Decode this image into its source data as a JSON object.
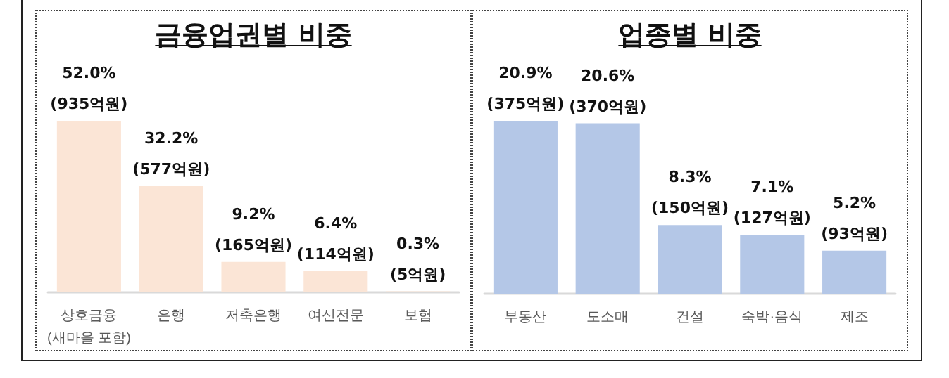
{
  "chart_data": [
    {
      "type": "bar",
      "title": "금융업권별 비중",
      "categories": [
        "상호금융\n(새마을 포함)",
        "은행",
        "저축은행",
        "여신전문",
        "보험"
      ],
      "series": [
        {
          "color": "#fbe5d6",
          "values": [
            52.0,
            32.2,
            9.2,
            6.4,
            0.3
          ],
          "value_labels": [
            "52.0%\n(935억원)",
            "32.2%\n(577억원)",
            "9.2%\n(165억원)",
            "6.4%\n(114억원)",
            "0.3%\n(5억원)"
          ]
        }
      ],
      "grid": false
    },
    {
      "type": "bar",
      "title": "업종별 비중",
      "categories": [
        "부동산",
        "도소매",
        "건설",
        "숙박·음식",
        "제조"
      ],
      "series": [
        {
          "color": "#b4c7e7",
          "values": [
            20.9,
            20.6,
            8.3,
            7.1,
            5.2
          ],
          "value_labels": [
            "20.9%\n(375억원)",
            "20.6%\n(370억원)",
            "8.3%\n(150억원)",
            "7.1%\n(127억원)",
            "5.2%\n(93억원)"
          ]
        }
      ],
      "grid": false
    }
  ]
}
